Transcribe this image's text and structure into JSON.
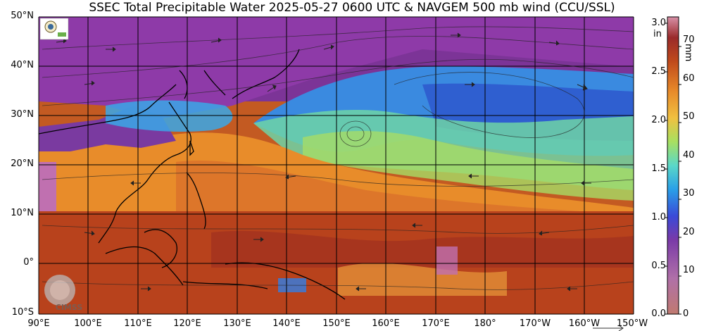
{
  "title": "SSEC Total Precipitable Water  2025-05-27 0600 UTC & NAVGEM 500 mb wind (CCU/SSL)",
  "lat_labels": [
    "50°N",
    "40°N",
    "30°N",
    "20°N",
    "10°N",
    "0°",
    "10°S"
  ],
  "lon_labels": [
    "90°E",
    "100°E",
    "110°E",
    "120°E",
    "130°E",
    "140°E",
    "150°E",
    "160°E",
    "170°E",
    "180°",
    "170°W",
    "160°W",
    "150°W"
  ],
  "colorbar": {
    "in_unit": "in",
    "in_ticks": [
      "3.0",
      "2.5",
      "2.0",
      "1.5",
      "1.0",
      "0.5",
      "0.0"
    ],
    "mm_unit": "mm",
    "mm_ticks": [
      "70",
      "60",
      "50",
      "40",
      "30",
      "20",
      "10",
      "0"
    ]
  },
  "logo_text": "CIMSS",
  "colors": {
    "very_dry": "#8a3aa0",
    "dry": "#3a7ce0",
    "moist": "#7ad8a0",
    "wet": "#e8902a",
    "very_wet": "#b2421c"
  }
}
